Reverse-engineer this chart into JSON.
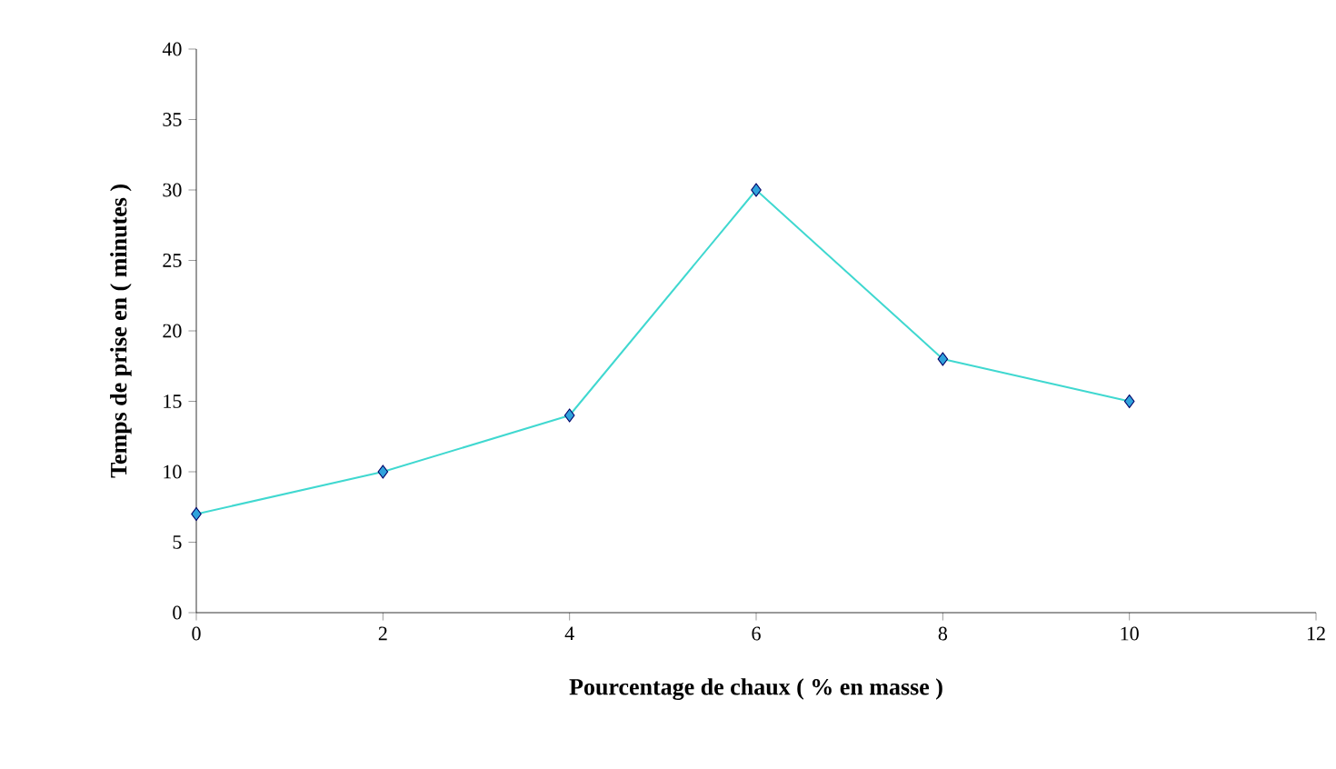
{
  "chart_data": {
    "type": "line",
    "xlabel": "Pourcentage  de  chaux  ( %  en  masse )",
    "ylabel": "Temps de prise en ( minutes )",
    "x": [
      0,
      2,
      4,
      6,
      8,
      10
    ],
    "series": [
      {
        "color": "#40d8d0",
        "values": [
          7,
          10,
          14,
          30,
          18,
          15
        ]
      }
    ],
    "xlim": [
      0,
      12
    ],
    "xticks": [
      0,
      2,
      4,
      6,
      8,
      10,
      12
    ],
    "ylim": [
      0,
      40
    ],
    "yticks": [
      0,
      5,
      10,
      15,
      20,
      25,
      30,
      35,
      40
    ],
    "grid": false,
    "marker": "diamond",
    "line_style": "solid"
  }
}
